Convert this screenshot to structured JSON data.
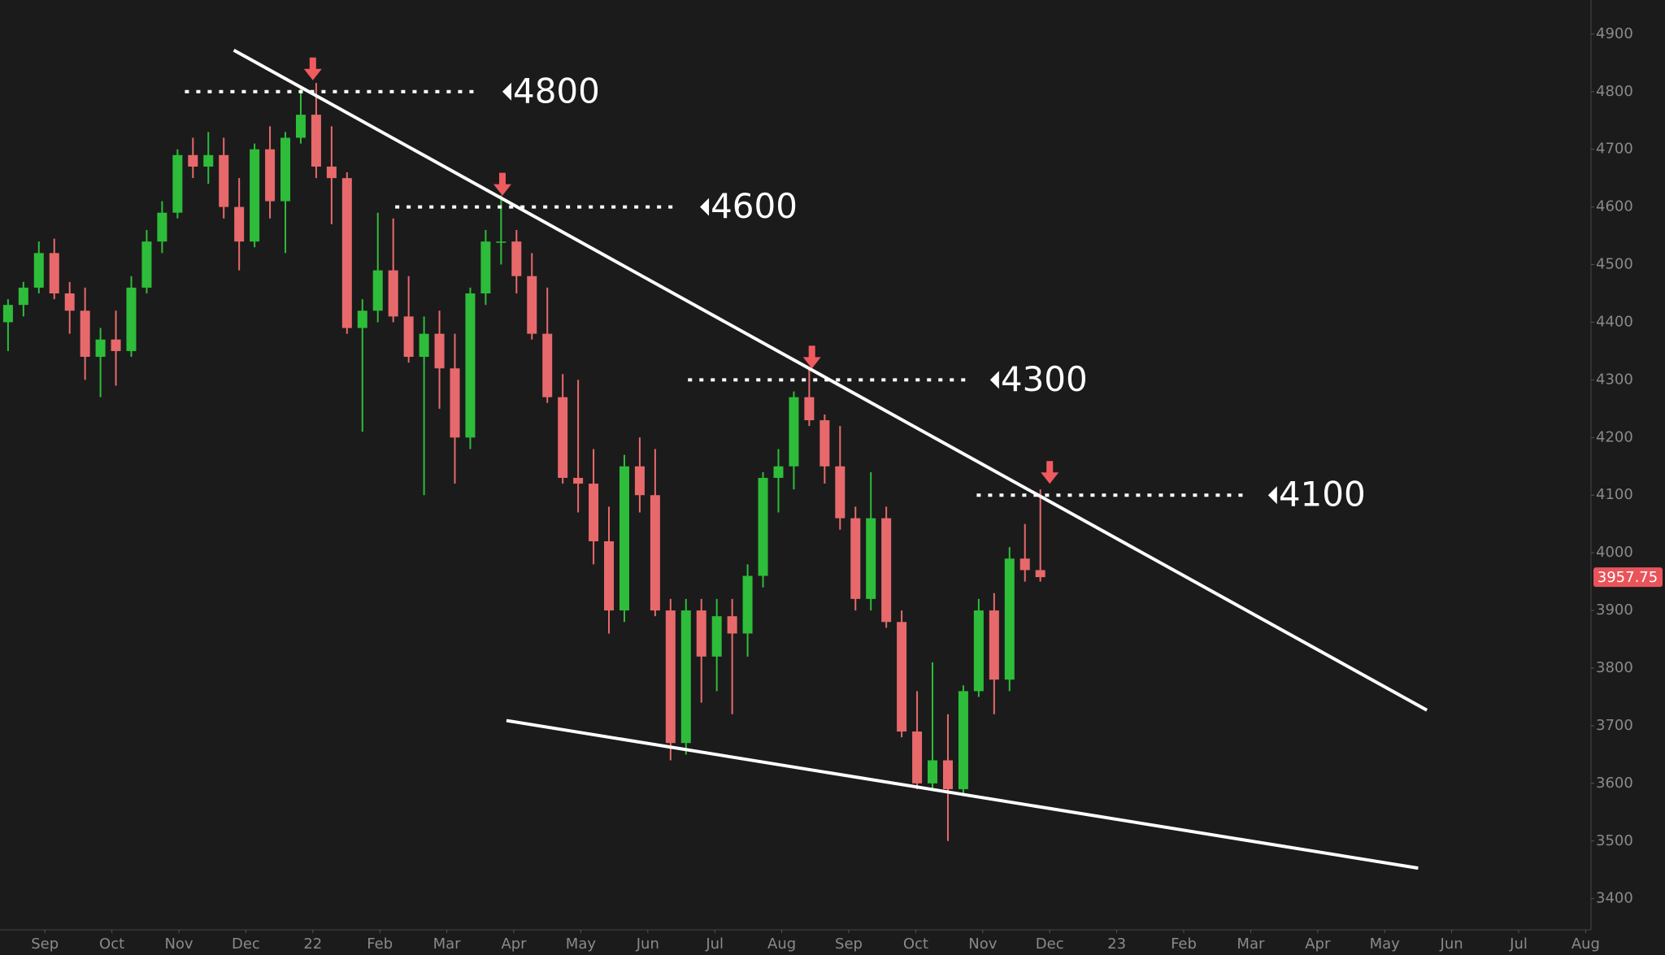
{
  "chart_data": {
    "type": "candlestick",
    "x": [
      -0.55,
      -0.32,
      -0.09,
      0.14,
      0.37,
      0.6,
      0.83,
      1.06,
      1.29,
      1.52,
      1.75,
      1.98,
      2.21,
      2.44,
      2.67,
      2.9,
      3.13,
      3.36,
      3.59,
      3.82,
      4.05,
      4.28,
      4.51,
      4.74,
      4.97,
      5.2,
      5.43,
      5.66,
      5.89,
      6.12,
      6.35,
      6.58,
      6.81,
      7.04,
      7.27,
      7.5,
      7.73,
      7.96,
      8.19,
      8.42,
      8.65,
      8.88,
      9.11,
      9.34,
      9.57,
      9.8,
      10.03,
      10.26,
      10.49,
      10.72,
      10.95,
      11.18,
      11.41,
      11.64,
      11.87,
      12.1,
      12.33,
      12.56,
      12.79,
      13.02,
      13.25,
      13.48,
      13.71,
      13.94,
      14.17,
      14.4,
      14.63,
      14.86
    ],
    "open": [
      4400,
      4430,
      4460,
      4520,
      4450,
      4420,
      4340,
      4370,
      4350,
      4460,
      4540,
      4590,
      4690,
      4670,
      4690,
      4600,
      4540,
      4700,
      4610,
      4720,
      4760,
      4670,
      4650,
      4390,
      4420,
      4490,
      4410,
      4340,
      4380,
      4320,
      4200,
      4450,
      4540,
      4540,
      4480,
      4380,
      4270,
      4130,
      4120,
      4020,
      3900,
      4150,
      4100,
      3900,
      3670,
      3900,
      3820,
      3890,
      3860,
      3960,
      4130,
      4150,
      4270,
      4230,
      4150,
      4060,
      3920,
      4060,
      3880,
      3690,
      3600,
      3640,
      3590,
      3760,
      3900,
      3780,
      3990,
      3970
    ],
    "high": [
      4440,
      4470,
      4540,
      4545,
      4470,
      4460,
      4390,
      4420,
      4480,
      4560,
      4610,
      4700,
      4720,
      4730,
      4720,
      4650,
      4710,
      4740,
      4730,
      4810,
      4815,
      4740,
      4660,
      4440,
      4590,
      4580,
      4480,
      4410,
      4420,
      4380,
      4460,
      4560,
      4620,
      4560,
      4520,
      4460,
      4310,
      4300,
      4180,
      4080,
      4170,
      4200,
      4180,
      3920,
      3920,
      3920,
      3920,
      3920,
      3980,
      4140,
      4180,
      4280,
      4320,
      4240,
      4220,
      4080,
      4140,
      4080,
      3900,
      3760,
      3810,
      3720,
      3770,
      3920,
      3930,
      4010,
      4050,
      4110
    ],
    "low": [
      4350,
      4410,
      4450,
      4440,
      4380,
      4300,
      4270,
      4290,
      4340,
      4450,
      4520,
      4580,
      4650,
      4640,
      4580,
      4490,
      4530,
      4580,
      4520,
      4710,
      4650,
      4570,
      4380,
      4210,
      4400,
      4400,
      4330,
      4100,
      4250,
      4120,
      4180,
      4430,
      4500,
      4450,
      4370,
      4260,
      4120,
      4070,
      3980,
      3860,
      3880,
      4070,
      3890,
      3640,
      3650,
      3740,
      3760,
      3720,
      3820,
      3940,
      4070,
      4110,
      4220,
      4120,
      4040,
      3900,
      3900,
      3870,
      3680,
      3590,
      3590,
      3500,
      3580,
      3750,
      3720,
      3760,
      3950,
      3950
    ],
    "close": [
      4430,
      4460,
      4520,
      4450,
      4420,
      4340,
      4370,
      4350,
      4460,
      4540,
      4590,
      4690,
      4670,
      4690,
      4600,
      4540,
      4700,
      4610,
      4720,
      4760,
      4670,
      4650,
      4390,
      4420,
      4490,
      4410,
      4340,
      4380,
      4320,
      4200,
      4450,
      4540,
      4540,
      4480,
      4380,
      4270,
      4130,
      4120,
      4020,
      3900,
      4150,
      4100,
      3900,
      3670,
      3900,
      3820,
      3890,
      3860,
      3960,
      4130,
      4150,
      4270,
      4230,
      4150,
      4060,
      3920,
      4060,
      3880,
      3690,
      3600,
      3640,
      3590,
      3760,
      3900,
      3780,
      3990,
      3970,
      3957.75
    ],
    "up_color": "#2dbd3a",
    "down_color": "#e8696b",
    "xlim": [
      -0.67,
      23.08
    ],
    "xticks": [
      {
        "value": 0,
        "label": "Sep"
      },
      {
        "value": 1,
        "label": "Oct"
      },
      {
        "value": 2,
        "label": "Nov"
      },
      {
        "value": 3,
        "label": "Dec"
      },
      {
        "value": 4,
        "label": "22"
      },
      {
        "value": 5,
        "label": "Feb"
      },
      {
        "value": 6,
        "label": "Mar"
      },
      {
        "value": 7,
        "label": "Apr"
      },
      {
        "value": 8,
        "label": "May"
      },
      {
        "value": 9,
        "label": "Jun"
      },
      {
        "value": 10,
        "label": "Jul"
      },
      {
        "value": 11,
        "label": "Aug"
      },
      {
        "value": 12,
        "label": "Sep"
      },
      {
        "value": 13,
        "label": "Oct"
      },
      {
        "value": 14,
        "label": "Nov"
      },
      {
        "value": 15,
        "label": "Dec"
      },
      {
        "value": 16,
        "label": "23"
      },
      {
        "value": 17,
        "label": "Feb"
      },
      {
        "value": 18,
        "label": "Mar"
      },
      {
        "value": 19,
        "label": "Apr"
      },
      {
        "value": 20,
        "label": "May"
      },
      {
        "value": 21,
        "label": "Jun"
      },
      {
        "value": 22,
        "label": "Jul"
      },
      {
        "value": 23,
        "label": "Aug"
      }
    ],
    "ylim": [
      3346,
      4959
    ],
    "yticks": [
      3400,
      3500,
      3600,
      3700,
      3800,
      3900,
      4000,
      4100,
      4200,
      4300,
      4400,
      4500,
      4600,
      4700,
      4800,
      4900
    ],
    "trendlines": [
      {
        "x": [
          2.82,
          20.63
        ],
        "y": [
          4872,
          3727
        ]
      },
      {
        "x": [
          6.89,
          20.5
        ],
        "y": [
          3709,
          3453
        ]
      }
    ],
    "levels": [
      {
        "value": 4800,
        "x": [
          2.09,
          6.49
        ],
        "arrow_x": 4.0
      },
      {
        "value": 4600,
        "x": [
          5.23,
          9.44
        ],
        "arrow_x": 6.83
      },
      {
        "value": 4300,
        "x": [
          9.6,
          13.77
        ],
        "arrow_x": 11.45
      },
      {
        "value": 4100,
        "x": [
          13.91,
          17.92
        ],
        "arrow_x": 15.0
      }
    ]
  }
}
